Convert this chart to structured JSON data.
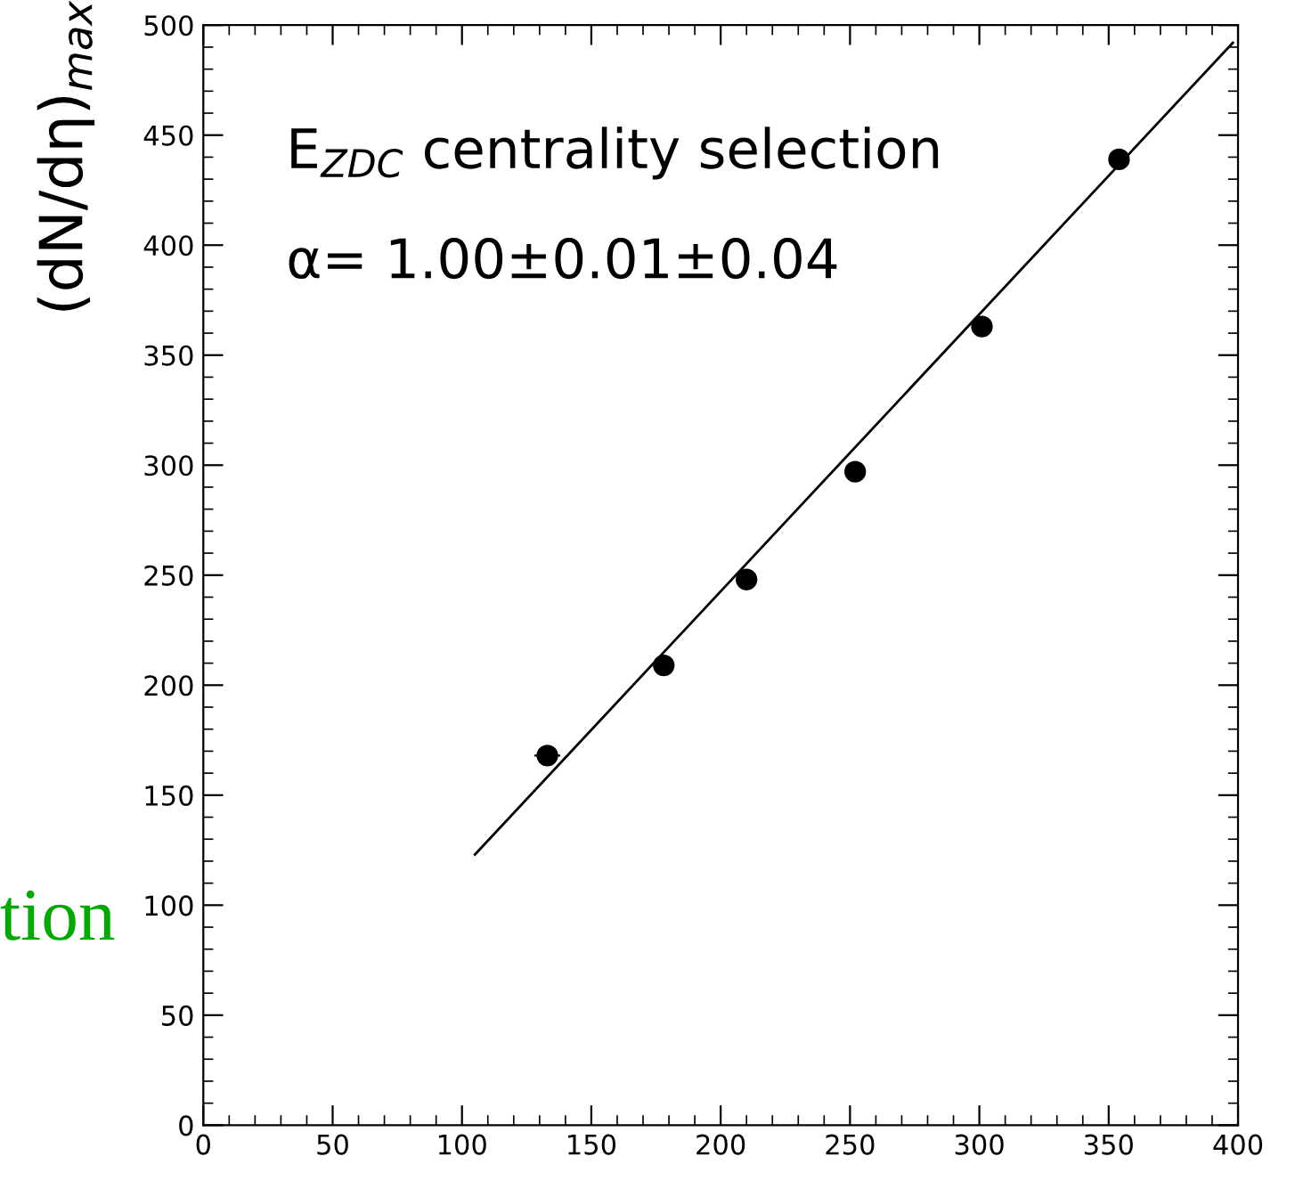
{
  "chart_data": {
    "type": "scatter",
    "ylabel": "(dN/dη)$_{max}$",
    "xlim": [
      0,
      400
    ],
    "xticks": [
      0,
      50,
      100,
      150,
      200,
      250,
      300,
      350,
      400
    ],
    "ylim": [
      0,
      500
    ],
    "yticks": [
      0,
      50,
      100,
      150,
      200,
      250,
      300,
      350,
      400,
      450,
      500
    ],
    "grid": false,
    "series": [
      {
        "color": "#000000",
        "marker": "circle",
        "x": [
          133,
          178,
          210,
          252,
          301,
          354
        ],
        "values": [
          168,
          209,
          248,
          297,
          363,
          439
        ],
        "xerrors": [
          5,
          4,
          3,
          2,
          2,
          2
        ]
      },
      {
        "type": "line",
        "color": "#000000",
        "x": [
          105,
          398
        ],
        "values": [
          123,
          492
        ],
        "marker": "none",
        "line_style": "solid"
      }
    ],
    "annotations": [
      "E$_{ZDC}$ centrality selection",
      "α= 1.00±0.01±0.04",
      "tion"
    ]
  }
}
